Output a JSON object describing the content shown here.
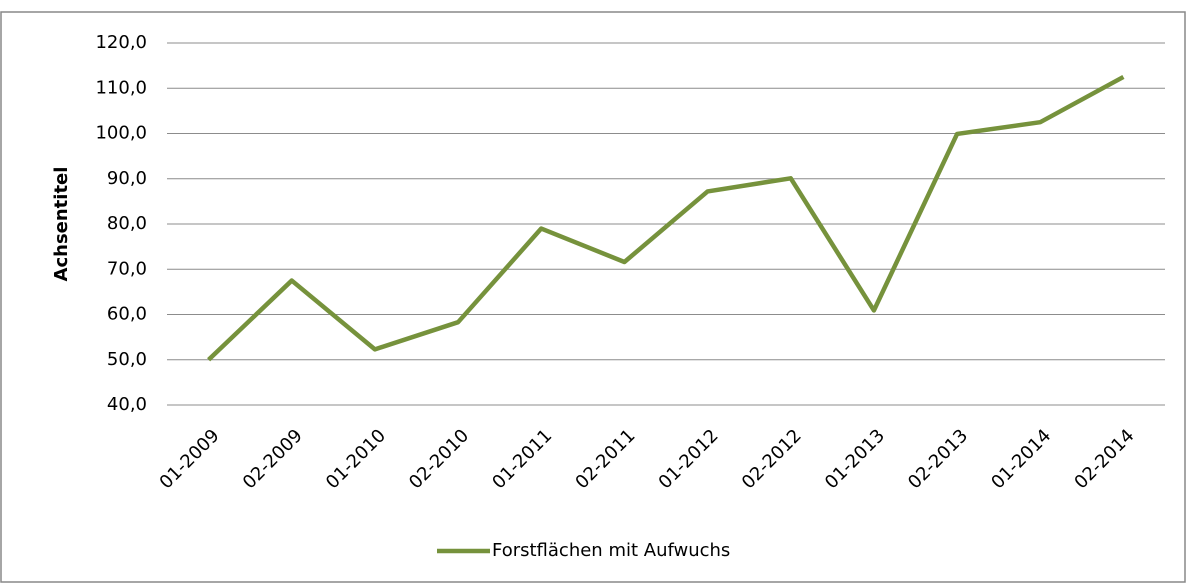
{
  "chart_data": {
    "type": "line",
    "y_label": "Achsentitel",
    "categories": [
      "01-2009",
      "02-2009",
      "01-2010",
      "02-2010",
      "01-2011",
      "02-2011",
      "01-2012",
      "02-2012",
      "01-2013",
      "02-2013",
      "01-2014",
      "02-2014"
    ],
    "series": [
      {
        "name": "Forstflächen mit Aufwuchs",
        "color": "#76923c",
        "values": [
          50.0,
          67.5,
          52.3,
          58.3,
          79.0,
          71.6,
          87.2,
          90.1,
          60.9,
          99.9,
          102.5,
          112.5
        ]
      }
    ],
    "ylim": [
      40,
      120
    ],
    "yticks": [
      {
        "value": 40,
        "label": "40,0"
      },
      {
        "value": 50,
        "label": "50,0"
      },
      {
        "value": 60,
        "label": "60,0"
      },
      {
        "value": 70,
        "label": "70,0"
      },
      {
        "value": 80,
        "label": "80,0"
      },
      {
        "value": 90,
        "label": "90,0"
      },
      {
        "value": 100,
        "label": "100,0"
      },
      {
        "value": 110,
        "label": "110,0"
      },
      {
        "value": 120,
        "label": "120,0"
      }
    ],
    "grid": true,
    "legend": "bottom"
  }
}
